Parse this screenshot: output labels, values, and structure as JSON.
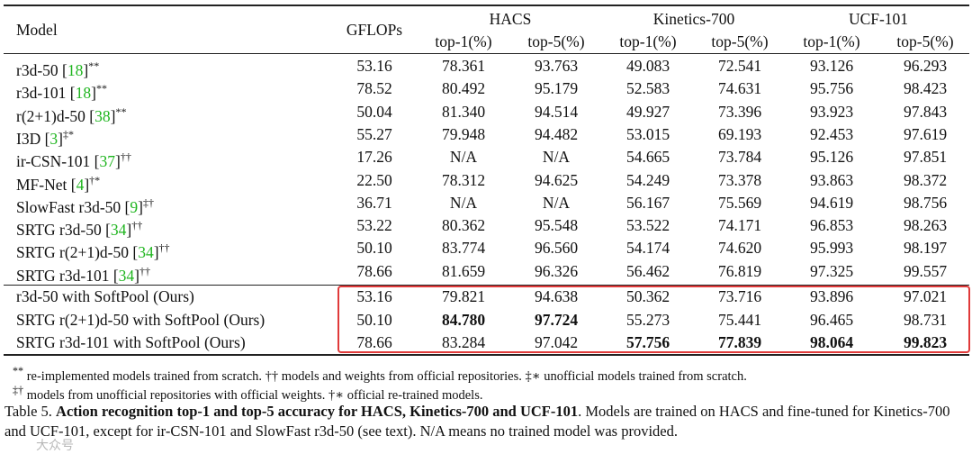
{
  "table": {
    "header": {
      "model": "Model",
      "gflops": "GFLOPs",
      "groups": [
        "HACS",
        "Kinetics-700",
        "UCF-101"
      ],
      "subcols": [
        "top-1(%)",
        "top-5(%)",
        "top-1(%)",
        "top-5(%)",
        "top-1(%)",
        "top-5(%)"
      ]
    },
    "rows": [
      {
        "pre": "r3d-50 [",
        "cite": "18",
        "post": "]",
        "sup": "**",
        "gflops": "53.16",
        "v": [
          "78.361",
          "93.763",
          "49.083",
          "72.541",
          "93.126",
          "96.293"
        ]
      },
      {
        "pre": "r3d-101 [",
        "cite": "18",
        "post": "]",
        "sup": "**",
        "gflops": "78.52",
        "v": [
          "80.492",
          "95.179",
          "52.583",
          "74.631",
          "95.756",
          "98.423"
        ]
      },
      {
        "pre": "r(2+1)d-50 [",
        "cite": "38",
        "post": "]",
        "sup": "**",
        "gflops": "50.04",
        "v": [
          "81.340",
          "94.514",
          "49.927",
          "73.396",
          "93.923",
          "97.843"
        ]
      },
      {
        "pre": "I3D [",
        "cite": "3",
        "post": "]",
        "sup": "‡*",
        "gflops": "55.27",
        "v": [
          "79.948",
          "94.482",
          "53.015",
          "69.193",
          "92.453",
          "97.619"
        ]
      },
      {
        "pre": "ir-CSN-101 [",
        "cite": "37",
        "post": "]",
        "sup": "††",
        "gflops": "17.26",
        "v": [
          "N/A",
          "N/A",
          "54.665",
          "73.784",
          "95.126",
          "97.851"
        ]
      },
      {
        "pre": "MF-Net [",
        "cite": "4",
        "post": "]",
        "sup": "†*",
        "gflops": "22.50",
        "v": [
          "78.312",
          "94.625",
          "54.249",
          "73.378",
          "93.863",
          "98.372"
        ]
      },
      {
        "pre": "SlowFast r3d-50 [",
        "cite": "9",
        "post": "]",
        "sup": "‡†",
        "gflops": "36.71",
        "v": [
          "N/A",
          "N/A",
          "56.167",
          "75.569",
          "94.619",
          "98.756"
        ]
      },
      {
        "pre": "SRTG r3d-50 [",
        "cite": "34",
        "post": "]",
        "sup": "††",
        "gflops": "53.22",
        "v": [
          "80.362",
          "95.548",
          "53.522",
          "74.171",
          "96.853",
          "98.263"
        ]
      },
      {
        "pre": "SRTG r(2+1)d-50 [",
        "cite": "34",
        "post": "]",
        "sup": "††",
        "gflops": "50.10",
        "v": [
          "83.774",
          "96.560",
          "54.174",
          "74.620",
          "95.993",
          "98.197"
        ]
      },
      {
        "pre": "SRTG r3d-101 [",
        "cite": "34",
        "post": "]",
        "sup": "††",
        "gflops": "78.66",
        "v": [
          "81.659",
          "96.326",
          "56.462",
          "76.819",
          "97.325",
          "99.557"
        ]
      }
    ],
    "ours": [
      {
        "name": "r3d-50 with SoftPool (Ours)",
        "gflops": "53.16",
        "v": [
          "79.821",
          "94.638",
          "50.362",
          "73.716",
          "93.896",
          "97.021"
        ],
        "bold": [
          false,
          false,
          false,
          false,
          false,
          false
        ]
      },
      {
        "name": "SRTG r(2+1)d-50 with SoftPool (Ours)",
        "gflops": "50.10",
        "v": [
          "84.780",
          "97.724",
          "55.273",
          "75.441",
          "96.465",
          "98.731"
        ],
        "bold": [
          true,
          true,
          false,
          false,
          false,
          false
        ]
      },
      {
        "name": "SRTG r3d-101 with SoftPool (Ours)",
        "gflops": "78.66",
        "v": [
          "83.284",
          "97.042",
          "57.756",
          "77.839",
          "98.064",
          "99.823"
        ],
        "bold": [
          false,
          false,
          true,
          true,
          true,
          true
        ]
      }
    ]
  },
  "footnotes": [
    {
      "sup": "**",
      "text": " re-implemented models trained from scratch. †† models and weights from official repositories. ‡∗ unofficial models trained from scratch."
    },
    {
      "sup": "‡†",
      "text": " models from unofficial repositories with official weights. †∗ official re-trained models."
    }
  ],
  "caption": {
    "label": "Table 5.",
    "bold": "Action recognition top-1 and top-5 accuracy for HACS, Kinetics-700 and UCF-101",
    "rest": ". Models are trained on HACS and fine-tuned for Kinetics-700 and UCF-101, except for ir-CSN-101 and SlowFast r3d-50 (see text). N/A means no trained model was provided."
  },
  "watermark": "大众号"
}
